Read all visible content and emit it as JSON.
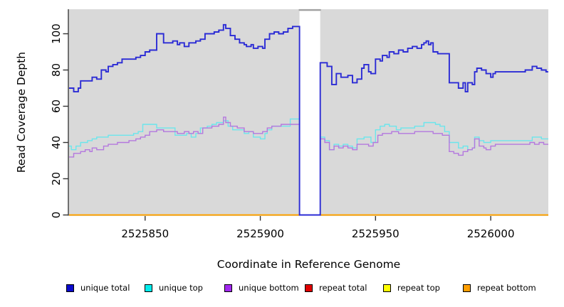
{
  "chart_data": {
    "type": "line",
    "subtype": "step-coverage-plot",
    "title": "",
    "xlabel": "Coordinate in Reference Genome",
    "ylabel": "Read Coverage Depth",
    "xlim": [
      2525817,
      2526025
    ],
    "ylim": [
      0,
      100
    ],
    "grid": false,
    "plot_bg": "#d9d9d9",
    "axis_color": "#333333",
    "gap_region": {
      "x0": 2525917,
      "x1": 2525926,
      "fill": "#ffffff",
      "top_border_color": "#a0a0a0",
      "note": "white masked interval where coverage drops to 0"
    },
    "x_ticks": [
      {
        "value": 2525850,
        "label": "2525850"
      },
      {
        "value": 2525900,
        "label": "2525900"
      },
      {
        "value": 2525950,
        "label": "2525950"
      },
      {
        "value": 2526000,
        "label": "2526000"
      }
    ],
    "y_ticks": [
      {
        "value": 0,
        "label": "0"
      },
      {
        "value": 20,
        "label": "20"
      },
      {
        "value": 40,
        "label": "40"
      },
      {
        "value": 60,
        "label": "60"
      },
      {
        "value": 80,
        "label": "80"
      },
      {
        "value": 100,
        "label": "100"
      }
    ],
    "legend_position": "bottom",
    "series": [
      {
        "name": "unique total",
        "color": "#0a0acc",
        "line_color": "#2b2bd5",
        "line_width": 1.9,
        "points": [
          [
            2525817,
            70
          ],
          [
            2525819,
            68
          ],
          [
            2525821,
            70
          ],
          [
            2525822,
            74
          ],
          [
            2525827,
            76
          ],
          [
            2525829,
            75
          ],
          [
            2525831,
            80
          ],
          [
            2525833,
            79
          ],
          [
            2525834,
            82
          ],
          [
            2525836,
            83
          ],
          [
            2525838,
            84
          ],
          [
            2525840,
            86
          ],
          [
            2525846,
            87
          ],
          [
            2525848,
            88
          ],
          [
            2525850,
            90
          ],
          [
            2525852,
            91
          ],
          [
            2525855,
            100
          ],
          [
            2525858,
            95
          ],
          [
            2525862,
            96
          ],
          [
            2525864,
            94
          ],
          [
            2525865,
            95
          ],
          [
            2525867,
            93
          ],
          [
            2525869,
            95
          ],
          [
            2525872,
            96
          ],
          [
            2525874,
            97
          ],
          [
            2525876,
            100
          ],
          [
            2525880,
            101
          ],
          [
            2525882,
            102
          ],
          [
            2525884,
            105
          ],
          [
            2525885,
            103
          ],
          [
            2525887,
            99
          ],
          [
            2525889,
            97
          ],
          [
            2525891,
            95
          ],
          [
            2525893,
            94
          ],
          [
            2525894,
            93
          ],
          [
            2525896,
            94
          ],
          [
            2525897,
            92
          ],
          [
            2525899,
            93
          ],
          [
            2525901,
            92
          ],
          [
            2525902,
            97
          ],
          [
            2525904,
            100
          ],
          [
            2525906,
            101
          ],
          [
            2525908,
            100
          ],
          [
            2525910,
            101
          ],
          [
            2525912,
            103
          ],
          [
            2525914,
            104
          ],
          [
            2525917,
            0
          ],
          [
            2525926,
            84
          ],
          [
            2525929,
            82
          ],
          [
            2525931,
            72
          ],
          [
            2525933,
            78
          ],
          [
            2525935,
            76
          ],
          [
            2525938,
            77
          ],
          [
            2525940,
            73
          ],
          [
            2525942,
            75
          ],
          [
            2525944,
            81
          ],
          [
            2525945,
            83
          ],
          [
            2525947,
            79
          ],
          [
            2525948,
            78
          ],
          [
            2525950,
            86
          ],
          [
            2525952,
            85
          ],
          [
            2525953,
            88
          ],
          [
            2525955,
            87
          ],
          [
            2525956,
            90
          ],
          [
            2525958,
            89
          ],
          [
            2525960,
            91
          ],
          [
            2525962,
            90
          ],
          [
            2525964,
            92
          ],
          [
            2525966,
            93
          ],
          [
            2525968,
            92
          ],
          [
            2525970,
            94
          ],
          [
            2525971,
            95
          ],
          [
            2525972,
            96
          ],
          [
            2525973,
            94
          ],
          [
            2525974,
            95
          ],
          [
            2525975,
            90
          ],
          [
            2525977,
            89
          ],
          [
            2525982,
            73
          ],
          [
            2525986,
            70
          ],
          [
            2525988,
            73
          ],
          [
            2525989,
            68
          ],
          [
            2525990,
            73
          ],
          [
            2525992,
            72
          ],
          [
            2525993,
            79
          ],
          [
            2525994,
            81
          ],
          [
            2525996,
            80
          ],
          [
            2525998,
            78
          ],
          [
            2526000,
            76
          ],
          [
            2526001,
            78
          ],
          [
            2526002,
            79
          ],
          [
            2526015,
            80
          ],
          [
            2526018,
            82
          ],
          [
            2526020,
            81
          ],
          [
            2526022,
            80
          ],
          [
            2526024,
            79
          ]
        ]
      },
      {
        "name": "unique top",
        "color": "#00eded",
        "line_color": "#6be6ec",
        "line_width": 1.4,
        "points": [
          [
            2525817,
            38
          ],
          [
            2525818,
            36
          ],
          [
            2525820,
            38
          ],
          [
            2525822,
            40
          ],
          [
            2525825,
            41
          ],
          [
            2525827,
            42
          ],
          [
            2525829,
            43
          ],
          [
            2525834,
            44
          ],
          [
            2525845,
            45
          ],
          [
            2525847,
            46
          ],
          [
            2525849,
            50
          ],
          [
            2525855,
            48
          ],
          [
            2525861,
            48
          ],
          [
            2525863,
            44
          ],
          [
            2525868,
            45
          ],
          [
            2525870,
            43
          ],
          [
            2525872,
            45
          ],
          [
            2525874,
            48
          ],
          [
            2525877,
            49
          ],
          [
            2525879,
            50
          ],
          [
            2525881,
            51
          ],
          [
            2525884,
            52
          ],
          [
            2525886,
            49
          ],
          [
            2525888,
            47
          ],
          [
            2525893,
            45
          ],
          [
            2525895,
            46
          ],
          [
            2525897,
            43
          ],
          [
            2525900,
            42
          ],
          [
            2525902,
            45
          ],
          [
            2525903,
            47
          ],
          [
            2525905,
            49
          ],
          [
            2525913,
            53
          ],
          [
            2525917,
            0
          ],
          [
            2525926,
            43
          ],
          [
            2525928,
            41
          ],
          [
            2525930,
            36
          ],
          [
            2525932,
            39
          ],
          [
            2525934,
            38
          ],
          [
            2525936,
            39
          ],
          [
            2525938,
            38
          ],
          [
            2525940,
            37
          ],
          [
            2525942,
            42
          ],
          [
            2525945,
            43
          ],
          [
            2525948,
            40
          ],
          [
            2525950,
            47
          ],
          [
            2525952,
            49
          ],
          [
            2525954,
            50
          ],
          [
            2525956,
            49
          ],
          [
            2525959,
            47
          ],
          [
            2525961,
            48
          ],
          [
            2525967,
            49
          ],
          [
            2525971,
            51
          ],
          [
            2525976,
            50
          ],
          [
            2525978,
            49
          ],
          [
            2525980,
            46
          ],
          [
            2525982,
            40
          ],
          [
            2525986,
            37
          ],
          [
            2525988,
            38
          ],
          [
            2525990,
            36
          ],
          [
            2525992,
            37
          ],
          [
            2525993,
            43
          ],
          [
            2525995,
            41
          ],
          [
            2525997,
            40
          ],
          [
            2526000,
            41
          ],
          [
            2526018,
            43
          ],
          [
            2526022,
            42
          ]
        ]
      },
      {
        "name": "unique bottom",
        "color": "#a228f0",
        "line_color": "#b478de",
        "line_width": 1.4,
        "points": [
          [
            2525817,
            32
          ],
          [
            2525819,
            34
          ],
          [
            2525822,
            35
          ],
          [
            2525824,
            36
          ],
          [
            2525826,
            35
          ],
          [
            2525827,
            37
          ],
          [
            2525829,
            36
          ],
          [
            2525832,
            38
          ],
          [
            2525834,
            39
          ],
          [
            2525838,
            40
          ],
          [
            2525843,
            41
          ],
          [
            2525846,
            42
          ],
          [
            2525848,
            43
          ],
          [
            2525850,
            44
          ],
          [
            2525852,
            46
          ],
          [
            2525855,
            47
          ],
          [
            2525858,
            46
          ],
          [
            2525864,
            45
          ],
          [
            2525867,
            46
          ],
          [
            2525869,
            45
          ],
          [
            2525871,
            46
          ],
          [
            2525873,
            45
          ],
          [
            2525875,
            48
          ],
          [
            2525879,
            49
          ],
          [
            2525882,
            50
          ],
          [
            2525884,
            54
          ],
          [
            2525885,
            51
          ],
          [
            2525887,
            49
          ],
          [
            2525890,
            48
          ],
          [
            2525893,
            46
          ],
          [
            2525897,
            45
          ],
          [
            2525901,
            46
          ],
          [
            2525903,
            48
          ],
          [
            2525905,
            49
          ],
          [
            2525909,
            50
          ],
          [
            2525917,
            0
          ],
          [
            2525926,
            42
          ],
          [
            2525928,
            40
          ],
          [
            2525930,
            36
          ],
          [
            2525932,
            38
          ],
          [
            2525934,
            37
          ],
          [
            2525936,
            38
          ],
          [
            2525938,
            37
          ],
          [
            2525940,
            36
          ],
          [
            2525942,
            39
          ],
          [
            2525947,
            38
          ],
          [
            2525949,
            40
          ],
          [
            2525951,
            44
          ],
          [
            2525953,
            45
          ],
          [
            2525957,
            46
          ],
          [
            2525960,
            45
          ],
          [
            2525967,
            46
          ],
          [
            2525971,
            46
          ],
          [
            2525975,
            45
          ],
          [
            2525979,
            44
          ],
          [
            2525982,
            35
          ],
          [
            2525984,
            34
          ],
          [
            2525986,
            33
          ],
          [
            2525988,
            35
          ],
          [
            2525990,
            36
          ],
          [
            2525992,
            37
          ],
          [
            2525993,
            42
          ],
          [
            2525995,
            38
          ],
          [
            2525997,
            37
          ],
          [
            2525998,
            36
          ],
          [
            2526000,
            38
          ],
          [
            2526002,
            39
          ],
          [
            2526014,
            39
          ],
          [
            2526017,
            40
          ],
          [
            2526019,
            39
          ],
          [
            2526021,
            40
          ],
          [
            2526023,
            39
          ]
        ]
      },
      {
        "name": "repeat total",
        "color": "#e00000",
        "line_color": "#e00000",
        "line_width": 1.8,
        "points": [
          [
            2525817,
            0
          ],
          [
            2526024,
            0
          ]
        ]
      },
      {
        "name": "repeat top",
        "color": "#ffff00",
        "line_color": "#ffff00",
        "line_width": 1.8,
        "points": [
          [
            2525817,
            0
          ],
          [
            2526024,
            0
          ]
        ]
      },
      {
        "name": "repeat bottom",
        "color": "#ff9e00",
        "line_color": "#ff9e00",
        "line_width": 1.8,
        "points": [
          [
            2525817,
            0
          ],
          [
            2526024,
            0
          ]
        ]
      }
    ]
  }
}
